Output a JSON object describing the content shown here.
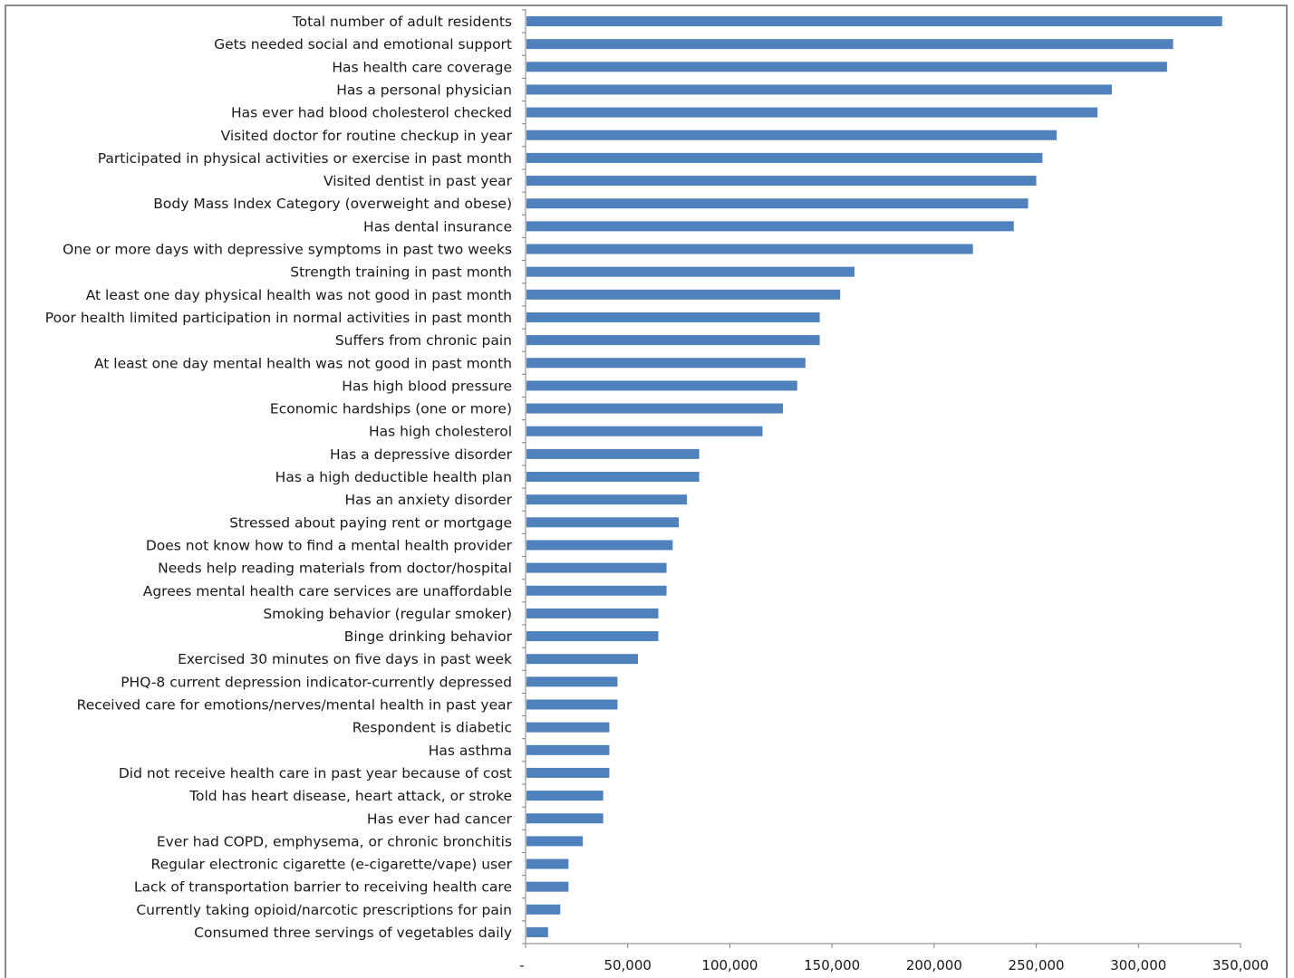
{
  "chart_data": {
    "type": "bar",
    "orientation": "horizontal",
    "categories": [
      "Total number of adult residents",
      "Gets needed social and emotional support",
      "Has health care coverage",
      "Has a personal physician",
      "Has ever had blood cholesterol checked",
      "Visited doctor for routine checkup in year",
      "Participated in physical activities or exercise in past month",
      "Visited dentist in past year",
      "Body Mass Index Category (overweight and obese)",
      "Has dental insurance",
      "One or more days with depressive symptoms in past two weeks",
      "Strength training in past month",
      "At least one day physical health was not good in past month",
      "Poor health limited participation in normal activities in past month",
      "Suffers from chronic pain",
      "At least one day mental health was not good in past month",
      "Has high blood pressure",
      "Economic hardships (one or more)",
      "Has high cholesterol",
      "Has a depressive disorder",
      "Has a high deductible health plan",
      "Has an anxiety disorder",
      "Stressed about paying rent or mortgage",
      "Does not know how to find a mental health provider",
      "Needs help reading materials from doctor/hospital",
      "Agrees mental health care services are unaffordable",
      "Smoking behavior (regular smoker)",
      "Binge drinking behavior",
      "Exercised 30 minutes on five days in past week",
      "PHQ-8 current depression indicator-currently depressed",
      "Received care for emotions/nerves/mental health in past year",
      "Respondent is diabetic",
      "Has asthma",
      "Did not receive health care in past year because of cost",
      "Told has heart disease, heart attack, or stroke",
      "Has ever had cancer",
      "Ever had COPD, emphysema, or chronic bronchitis",
      "Regular electronic cigarette (e-cigarette/vape) user",
      "Lack of transportation barrier to receiving health care",
      "Currently taking opioid/narcotic prescriptions for pain",
      "Consumed three servings of vegetables daily"
    ],
    "values": [
      341000,
      317000,
      314000,
      287000,
      280000,
      260000,
      253000,
      250000,
      246000,
      239000,
      219000,
      161000,
      154000,
      144000,
      144000,
      137000,
      133000,
      126000,
      116000,
      85000,
      85000,
      79000,
      75000,
      72000,
      69000,
      69000,
      65000,
      65000,
      55000,
      45000,
      45000,
      41000,
      41000,
      41000,
      38000,
      38000,
      28000,
      21000,
      21000,
      17000,
      11000
    ],
    "xlim": [
      0,
      350000
    ],
    "x_ticks": [
      0,
      50000,
      100000,
      150000,
      200000,
      250000,
      300000,
      350000
    ],
    "x_tick_labels": [
      "-",
      "50,000",
      "100,000",
      "150,000",
      "200,000",
      "250,000",
      "300,000",
      "350,000"
    ],
    "title": "",
    "xlabel": "",
    "ylabel": "",
    "grid": false,
    "legend": "none",
    "bar_color": "#4f81bd"
  }
}
